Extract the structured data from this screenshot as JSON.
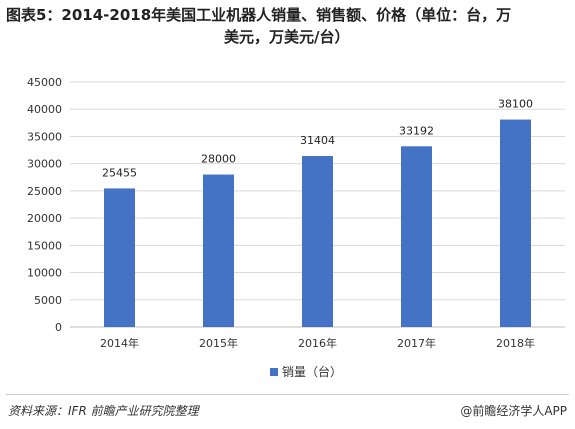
{
  "title_line1": "图表5：2014-2018年美国工业机器人销量、销售额、价格（单位：台，万",
  "title_line2": "美元，万美元/台）",
  "legend_label": "销量（台）",
  "source": "资料来源：IFR 前瞻产业研究院整理",
  "brand": "@前瞻经济学人APP",
  "colors": {
    "bar": "#4472c4",
    "grid": "#d9d9d9"
  },
  "chart_data": {
    "type": "bar",
    "title": "图表5：2014-2018年美国工业机器人销量、销售额、价格（单位：台，万美元，万美元/台）",
    "categories": [
      "2014年",
      "2015年",
      "2016年",
      "2017年",
      "2018年"
    ],
    "series": [
      {
        "name": "销量（台）",
        "values": [
          25455,
          28000,
          31404,
          33192,
          38100
        ]
      }
    ],
    "yticks": [
      0,
      5000,
      10000,
      15000,
      20000,
      25000,
      30000,
      35000,
      40000,
      45000
    ],
    "ylim": [
      0,
      45000
    ],
    "grid": true,
    "legend_position": "bottom"
  }
}
